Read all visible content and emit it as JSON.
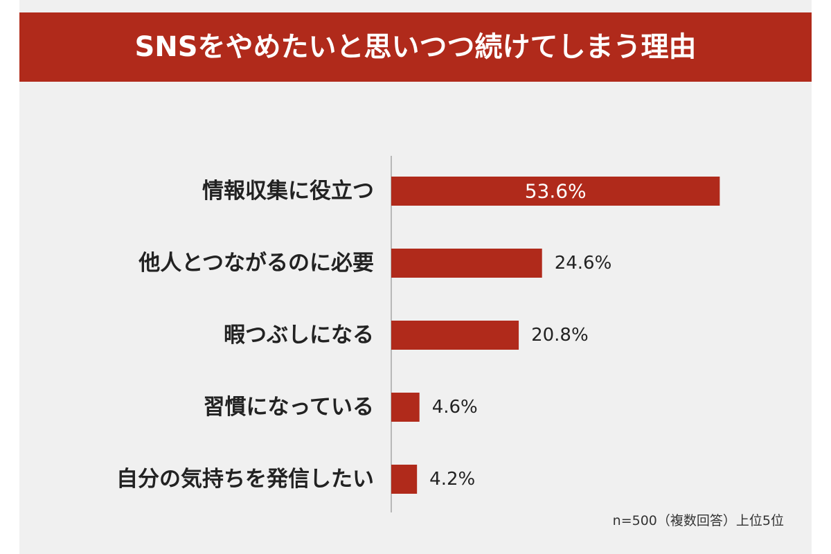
{
  "colors": {
    "header_bg": "#b02a1b",
    "bar": "#b02a1b",
    "panel_bg": "#f0f0f0",
    "axis": "#b8b8b8"
  },
  "note": "n=500（複数回答）上位5位",
  "chart_data": {
    "type": "bar",
    "orientation": "horizontal",
    "title": "SNSをやめたいと思いつつ続けてしまう理由",
    "categories": [
      "情報収集に役立つ",
      "他人とつながるのに必要",
      "暇つぶしになる",
      "習慣になっている",
      "自分の気持ちを発信したい"
    ],
    "values": [
      53.6,
      24.6,
      20.8,
      4.6,
      4.2
    ],
    "value_labels": [
      "53.6%",
      "24.6%",
      "20.8%",
      "4.6%",
      "4.2%"
    ],
    "unit": "%",
    "xlim": [
      0,
      100
    ],
    "grid": false,
    "legend": "none"
  }
}
